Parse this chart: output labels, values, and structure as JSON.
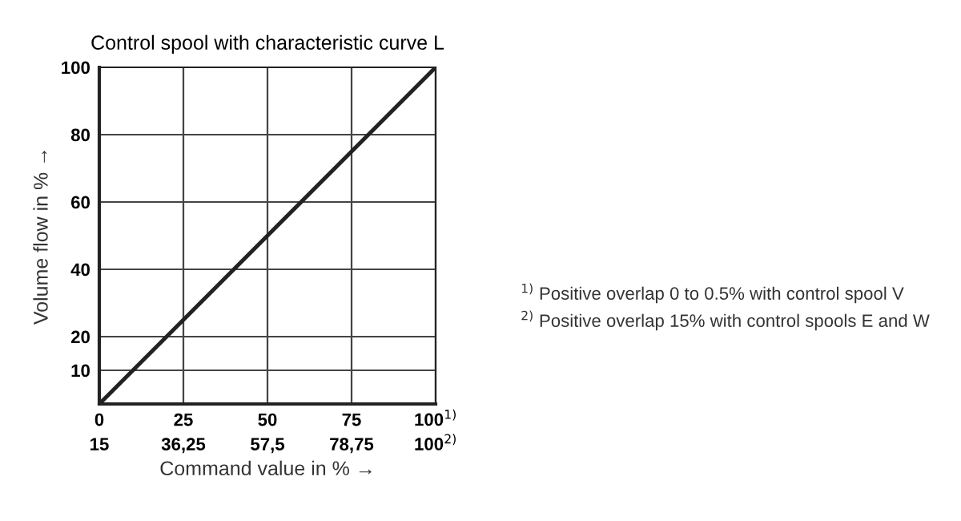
{
  "chart_data": {
    "type": "line",
    "title": "Control spool with characteristic curve L",
    "xlabel": "Command value in % →",
    "ylabel": "Volume flow in % →",
    "x": [
      0,
      100
    ],
    "series": [
      {
        "color": "#222222",
        "values": [
          0,
          100
        ]
      }
    ],
    "xlim": [
      0,
      100
    ],
    "ylim": [
      0,
      100
    ],
    "xticks": [
      0,
      25,
      50,
      75,
      {
        "value": 100,
        "label": "100$^{1)}$"
      }
    ],
    "x2lim": [
      15,
      100
    ],
    "x2ticks": [
      15,
      {
        "value": 36.25,
        "label": "36,25"
      },
      {
        "value": 57.5,
        "label": "57,5"
      },
      {
        "value": 78.75,
        "label": "78,75"
      },
      {
        "value": 100,
        "label": "100$^{2)}$"
      }
    ],
    "yticks": [
      10,
      20,
      40,
      60,
      80,
      100
    ],
    "grid": true,
    "legend": false,
    "marker": "none",
    "line_style": "solid",
    "annotations": [
      "$^{1)}$ Positive overlap 0 to 0.5% with control spool V",
      "$^{2)}$ Positive overlap 15% with control spools E and W"
    ]
  }
}
